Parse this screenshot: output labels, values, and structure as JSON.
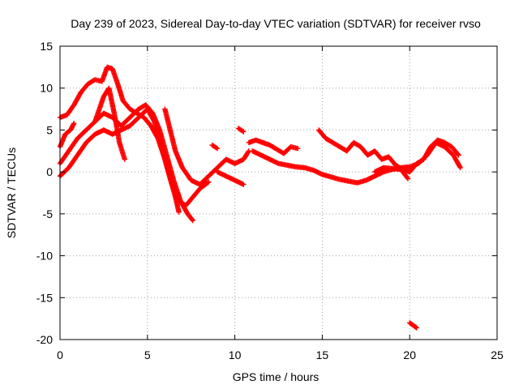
{
  "chart_data": {
    "type": "scatter",
    "title": "Day 239 of 2023, Sidereal Day-to-day VTEC variation (SDTVAR) for receiver rvso",
    "xlabel": "GPS time / hours",
    "ylabel": "SDTVAR / TECUs",
    "xlim": [
      0,
      25
    ],
    "ylim": [
      -20,
      15
    ],
    "x_ticks": [
      0,
      5,
      10,
      15,
      20,
      25
    ],
    "y_ticks": [
      -20,
      -15,
      -10,
      -5,
      0,
      5,
      10,
      15
    ],
    "grid": true,
    "marker": "plus",
    "color": "#ff0000",
    "series": [
      {
        "name": "track-1",
        "points": [
          [
            0.0,
            6.5
          ],
          [
            0.4,
            6.8
          ],
          [
            0.8,
            8.0
          ],
          [
            1.2,
            9.5
          ],
          [
            1.6,
            10.5
          ],
          [
            2.0,
            11.0
          ],
          [
            2.4,
            10.8
          ],
          [
            2.7,
            12.5
          ],
          [
            3.0,
            12.3
          ],
          [
            3.3,
            10.5
          ],
          [
            3.6,
            8.5
          ],
          [
            4.0,
            7.5
          ],
          [
            4.4,
            7.0
          ],
          [
            4.8,
            6.5
          ],
          [
            5.2,
            5.5
          ],
          [
            5.6,
            4.0
          ],
          [
            6.0,
            1.5
          ],
          [
            6.4,
            -1.5
          ],
          [
            6.8,
            -3.5
          ],
          [
            7.2,
            -4.0
          ],
          [
            7.6,
            -3.0
          ],
          [
            8.0,
            -2.0
          ],
          [
            8.5,
            -1.2
          ]
        ]
      },
      {
        "name": "track-2",
        "points": [
          [
            0.0,
            1.0
          ],
          [
            0.5,
            2.5
          ],
          [
            1.0,
            4.0
          ],
          [
            1.5,
            5.0
          ],
          [
            2.0,
            6.0
          ],
          [
            2.5,
            7.0
          ],
          [
            3.0,
            6.5
          ],
          [
            3.5,
            5.5
          ],
          [
            4.0,
            6.5
          ],
          [
            4.5,
            7.5
          ],
          [
            4.9,
            8.0
          ],
          [
            5.3,
            7.0
          ],
          [
            5.7,
            5.0
          ],
          [
            6.1,
            2.0
          ],
          [
            6.5,
            -1.0
          ],
          [
            6.9,
            -3.5
          ],
          [
            7.3,
            -5.0
          ],
          [
            7.6,
            -5.8
          ]
        ]
      },
      {
        "name": "track-3",
        "points": [
          [
            0.0,
            -0.5
          ],
          [
            0.5,
            0.5
          ],
          [
            1.0,
            2.0
          ],
          [
            1.5,
            3.5
          ],
          [
            2.0,
            4.5
          ],
          [
            2.5,
            5.0
          ],
          [
            3.0,
            4.5
          ],
          [
            3.5,
            5.0
          ],
          [
            4.0,
            5.5
          ],
          [
            4.5,
            6.5
          ],
          [
            5.0,
            7.5
          ],
          [
            5.4,
            6.0
          ],
          [
            5.8,
            3.0
          ],
          [
            6.2,
            0.0
          ],
          [
            6.6,
            -3.0
          ],
          [
            6.8,
            -4.8
          ]
        ]
      },
      {
        "name": "track-4",
        "points": [
          [
            0.0,
            3.0
          ],
          [
            0.3,
            4.5
          ],
          [
            0.6,
            5.0
          ],
          [
            0.8,
            5.8
          ]
        ]
      },
      {
        "name": "track-5",
        "points": [
          [
            2.0,
            6.0
          ],
          [
            2.5,
            9.0
          ],
          [
            2.8,
            10.0
          ],
          [
            3.1,
            7.0
          ],
          [
            3.4,
            3.5
          ],
          [
            3.7,
            1.5
          ]
        ]
      },
      {
        "name": "track-6",
        "points": [
          [
            6.0,
            7.5
          ],
          [
            6.3,
            5.0
          ],
          [
            6.6,
            2.5
          ],
          [
            7.0,
            0.5
          ],
          [
            7.5,
            -1.0
          ],
          [
            8.0,
            -1.5
          ],
          [
            8.5,
            -0.5
          ],
          [
            9.0,
            0.5
          ],
          [
            9.5,
            1.5
          ],
          [
            10.0,
            1.0
          ],
          [
            10.5,
            1.5
          ],
          [
            10.8,
            2.5
          ]
        ]
      },
      {
        "name": "track-7",
        "points": [
          [
            8.7,
            3.2
          ],
          [
            9.0,
            2.8
          ]
        ]
      },
      {
        "name": "track-8",
        "points": [
          [
            9.0,
            0.0
          ],
          [
            9.5,
            -0.5
          ],
          [
            10.0,
            -1.0
          ],
          [
            10.5,
            -1.5
          ]
        ]
      },
      {
        "name": "track-9",
        "points": [
          [
            10.2,
            5.2
          ],
          [
            10.5,
            4.8
          ]
        ]
      },
      {
        "name": "track-10",
        "points": [
          [
            10.8,
            3.5
          ],
          [
            11.2,
            3.8
          ],
          [
            11.6,
            3.5
          ],
          [
            12.0,
            3.2
          ],
          [
            12.4,
            2.7
          ],
          [
            12.8,
            2.2
          ],
          [
            13.2,
            3.0
          ],
          [
            13.6,
            2.8
          ]
        ]
      },
      {
        "name": "track-11",
        "points": [
          [
            11.0,
            2.5
          ],
          [
            11.5,
            2.0
          ],
          [
            12.0,
            1.5
          ],
          [
            12.5,
            1.0
          ],
          [
            13.0,
            0.8
          ],
          [
            13.5,
            0.6
          ],
          [
            14.0,
            0.5
          ],
          [
            14.5,
            0.2
          ],
          [
            15.0,
            -0.3
          ],
          [
            15.5,
            -0.6
          ],
          [
            16.0,
            -0.9
          ],
          [
            16.5,
            -1.1
          ],
          [
            17.0,
            -1.3
          ],
          [
            17.5,
            -1.0
          ],
          [
            18.0,
            -0.5
          ],
          [
            18.5,
            0.0
          ],
          [
            19.0,
            0.3
          ],
          [
            19.5,
            0.5
          ],
          [
            20.0,
            0.6
          ],
          [
            20.5,
            1.0
          ],
          [
            21.0,
            2.0
          ],
          [
            21.5,
            3.5
          ],
          [
            22.0,
            3.0
          ],
          [
            22.5,
            2.0
          ],
          [
            22.9,
            0.5
          ]
        ]
      },
      {
        "name": "track-12",
        "points": [
          [
            14.8,
            5.0
          ],
          [
            15.2,
            4.0
          ],
          [
            15.6,
            3.5
          ],
          [
            16.0,
            3.0
          ],
          [
            16.4,
            2.5
          ],
          [
            16.8,
            3.5
          ],
          [
            17.2,
            3.0
          ],
          [
            17.6,
            2.0
          ],
          [
            18.0,
            2.5
          ],
          [
            18.4,
            1.5
          ],
          [
            18.8,
            1.8
          ],
          [
            19.2,
            0.8
          ],
          [
            19.6,
            0.3
          ],
          [
            20.0,
            0.0
          ],
          [
            20.4,
            1.0
          ],
          [
            20.8,
            1.5
          ],
          [
            21.2,
            3.0
          ],
          [
            21.6,
            3.8
          ],
          [
            22.0,
            3.5
          ],
          [
            22.4,
            3.0
          ],
          [
            22.8,
            2.0
          ]
        ]
      },
      {
        "name": "track-13",
        "points": [
          [
            18.0,
            0.0
          ],
          [
            18.5,
            0.5
          ],
          [
            19.0,
            0.4
          ],
          [
            19.5,
            0.3
          ],
          [
            19.9,
            -0.8
          ]
        ]
      },
      {
        "name": "track-14",
        "points": [
          [
            20.0,
            -18.0
          ],
          [
            20.4,
            -18.6
          ]
        ]
      }
    ]
  }
}
